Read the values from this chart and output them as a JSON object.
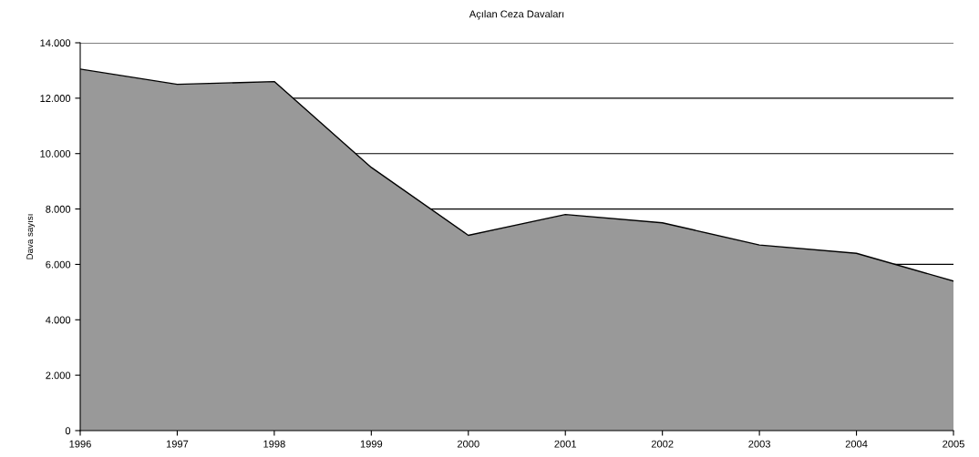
{
  "chart_data": {
    "type": "area",
    "title": "Açılan Ceza Davaları",
    "ylabel": "Dava sayısı",
    "x": [
      1996,
      1997,
      1998,
      1999,
      2000,
      2001,
      2002,
      2003,
      2004,
      2005
    ],
    "series": [
      {
        "color": "#999999",
        "values": [
          13050,
          12500,
          12600,
          9500,
          7050,
          7800,
          7500,
          6700,
          6400,
          5400
        ]
      }
    ],
    "xlim": [
      1996,
      2005
    ],
    "xticks": [
      1996,
      1997,
      1998,
      1999,
      2000,
      2001,
      2002,
      2003,
      2004,
      2005
    ],
    "ylim": [
      0,
      14000
    ],
    "yticks": [
      {
        "value": 0,
        "label": "0"
      },
      {
        "value": 2000,
        "label": "2.000"
      },
      {
        "value": 4000,
        "label": "4.000"
      },
      {
        "value": 6000,
        "label": "6.000"
      },
      {
        "value": 8000,
        "label": "8.000"
      },
      {
        "value": 10000,
        "label": "10.000"
      },
      {
        "value": 12000,
        "label": "12.000"
      },
      {
        "value": 14000,
        "label": "14.000"
      }
    ],
    "grid": "y"
  }
}
